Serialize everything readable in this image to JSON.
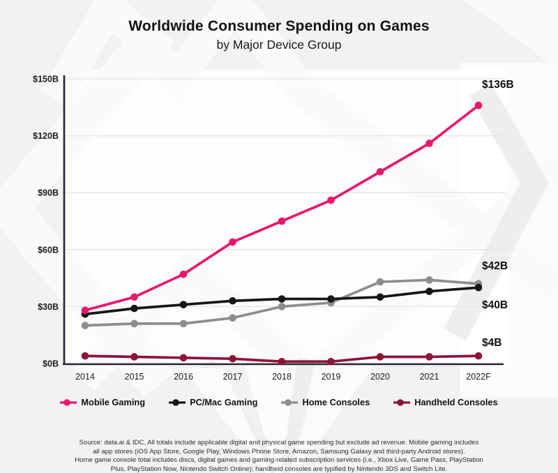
{
  "title": "Worldwide Consumer Spending on Games",
  "subtitle": "by Major Device Group",
  "chart_data": {
    "type": "line",
    "x_categories": [
      "2014",
      "2015",
      "2016",
      "2017",
      "2018",
      "2019",
      "2020",
      "2021",
      "2022F"
    ],
    "y_ticks": [
      {
        "label": "$0B",
        "value": 0
      },
      {
        "label": "$30B",
        "value": 30
      },
      {
        "label": "$60B",
        "value": 60
      },
      {
        "label": "$90B",
        "value": 90
      },
      {
        "label": "$120B",
        "value": 120
      },
      {
        "label": "$150B",
        "value": 150
      }
    ],
    "ylim": [
      0,
      150
    ],
    "grid": true,
    "legend_position": "bottom",
    "series": [
      {
        "name": "Mobile Gaming",
        "color": "#E9176D",
        "end_label": "$136B",
        "values": [
          28,
          35,
          47,
          64,
          75,
          86,
          101,
          116,
          136
        ]
      },
      {
        "name": "PC/Mac Gaming",
        "color": "#161616",
        "end_label": "$40B",
        "values": [
          26,
          29,
          31,
          33,
          34,
          34,
          35,
          38,
          40
        ]
      },
      {
        "name": "Home Consoles",
        "color": "#8D8D8D",
        "end_label": "$42B",
        "values": [
          20,
          21,
          21,
          24,
          30,
          32,
          43,
          44,
          42
        ]
      },
      {
        "name": "Handheld Consoles",
        "color": "#8C1537",
        "end_label": "$4B",
        "values": [
          4,
          3.5,
          3,
          2.5,
          1,
          1,
          3.5,
          3.5,
          4
        ]
      }
    ]
  },
  "footer": {
    "lines": [
      "Source: data.ai & IDC. All totals include applicable digital and physical game spending but exclude ad revenue. Mobile gaming includes",
      "all app stores (iOS App Store, Google Play, Windows Phone Store, Amazon, Samsung Galaxy and third-party Android stores).",
      "Home game console total includes discs, digital games and gaming-related subscription services (i.e., Xbox Live, Game Pass, PlayStation",
      "Plus, PlayStation Now, Nintendo Switch Online); handheld consoles are typified by Nintendo 3DS and Switch Lite."
    ]
  }
}
